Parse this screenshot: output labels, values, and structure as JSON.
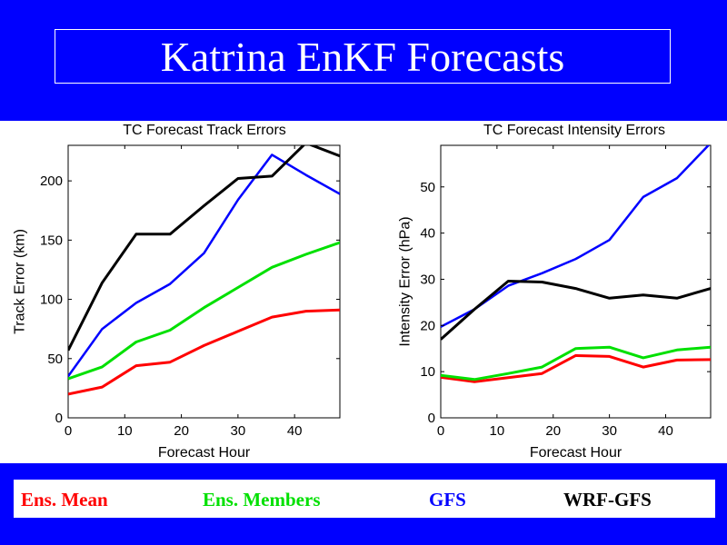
{
  "slide": {
    "title": "Katrina EnKF Forecasts"
  },
  "legend": [
    {
      "label": "Ens. Mean",
      "color": "#ff0000"
    },
    {
      "label": "Ens. Members",
      "color": "#00e000"
    },
    {
      "label": "GFS",
      "color": "#0000ff"
    },
    {
      "label": "WRF-GFS",
      "color": "#000000"
    }
  ],
  "chart_data": [
    {
      "type": "line",
      "title": "TC Forecast Track Errors",
      "xlabel": "Forecast Hour",
      "ylabel": "Track Error (km)",
      "xlim": [
        0,
        48
      ],
      "ylim": [
        0,
        230
      ],
      "xticks": [
        0,
        10,
        20,
        30,
        40
      ],
      "yticks": [
        0,
        50,
        100,
        150,
        200
      ],
      "grid": false,
      "series": [
        {
          "name": "Ens. Mean",
          "color": "#ff0000",
          "width": 3,
          "x": [
            0,
            6,
            12,
            18,
            24,
            30,
            36,
            42,
            48
          ],
          "y": [
            20,
            26,
            44,
            47,
            61,
            73,
            85,
            90,
            91
          ]
        },
        {
          "name": "Ens. Members",
          "color": "#00e000",
          "width": 3,
          "x": [
            0,
            6,
            12,
            18,
            24,
            30,
            36,
            42,
            48
          ],
          "y": [
            33,
            43,
            64,
            74,
            93,
            110,
            127,
            138,
            148
          ]
        },
        {
          "name": "GFS",
          "color": "#0000ff",
          "width": 2.5,
          "x": [
            0,
            6,
            12,
            18,
            24,
            30,
            36,
            42,
            48
          ],
          "y": [
            35,
            75,
            97,
            113,
            139,
            184,
            222,
            205,
            189
          ]
        },
        {
          "name": "WRF-GFS",
          "color": "#000000",
          "width": 3,
          "x": [
            0,
            6,
            12,
            18,
            24,
            30,
            36,
            42,
            48
          ],
          "y": [
            57,
            114,
            155,
            155,
            179,
            202,
            204,
            232,
            221
          ]
        }
      ]
    },
    {
      "type": "line",
      "title": "TC Forecast Intensity Errors",
      "xlabel": "Forecast Hour",
      "ylabel": "Intensity Error (hPa)",
      "xlim": [
        0,
        48
      ],
      "ylim": [
        0,
        59
      ],
      "xticks": [
        0,
        10,
        20,
        30,
        40
      ],
      "yticks": [
        0,
        10,
        20,
        30,
        40,
        50
      ],
      "grid": false,
      "series": [
        {
          "name": "Ens. Mean",
          "color": "#ff0000",
          "width": 3,
          "x": [
            0,
            6,
            12,
            18,
            24,
            30,
            36,
            42,
            48
          ],
          "y": [
            8.8,
            7.8,
            8.7,
            9.6,
            13.5,
            13.3,
            11.0,
            12.5,
            12.6
          ]
        },
        {
          "name": "Ens. Members",
          "color": "#00e000",
          "width": 3,
          "x": [
            0,
            6,
            12,
            18,
            24,
            30,
            36,
            42,
            48
          ],
          "y": [
            9.2,
            8.3,
            9.6,
            11.0,
            15.0,
            15.3,
            13.0,
            14.7,
            15.3
          ]
        },
        {
          "name": "GFS",
          "color": "#0000ff",
          "width": 2.5,
          "x": [
            0,
            6,
            12,
            18,
            24,
            30,
            36,
            42,
            48
          ],
          "y": [
            19.7,
            23.5,
            28.6,
            31.3,
            34.4,
            38.5,
            47.8,
            51.9,
            59.5
          ]
        },
        {
          "name": "WRF-GFS",
          "color": "#000000",
          "width": 3,
          "x": [
            0,
            6,
            12,
            18,
            24,
            30,
            36,
            42,
            48
          ],
          "y": [
            17.0,
            23.5,
            29.6,
            29.4,
            28.0,
            25.9,
            26.6,
            25.9,
            28.0
          ]
        }
      ]
    }
  ]
}
